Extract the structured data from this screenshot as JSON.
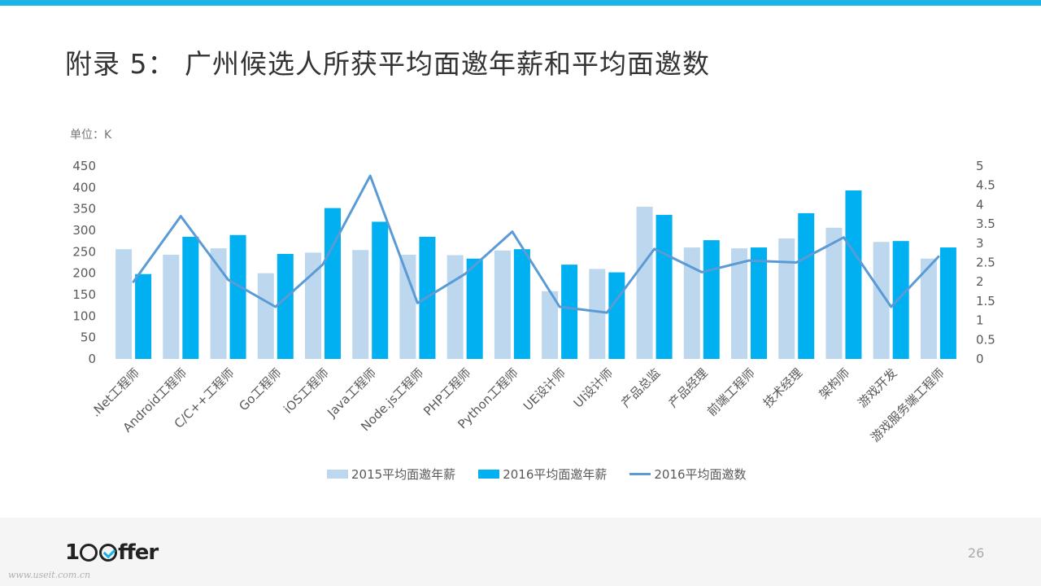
{
  "title": "附录 5： 广州候选人所获平均面邀年薪和平均面邀数",
  "unit_label": "单位：K",
  "page_number": "26",
  "logo": {
    "pre": "1",
    "post": "ffer",
    "icon": "check-circle-icon"
  },
  "watermark": "www.useit.com.cn",
  "colors": {
    "accent": "#1ab3e6",
    "s2015": "#bdd7ee",
    "s2016": "#00b0f0",
    "line": "#5b9bd5"
  },
  "chart_data": {
    "type": "bar",
    "categories": [
      ".Net工程师",
      "Android工程师",
      "C/C++工程师",
      "Go工程师",
      "iOS工程师",
      "Java工程师",
      "Node.js工程师",
      "PHP工程师",
      "Python工程师",
      "UE设计师",
      "UI设计师",
      "产品总监",
      "产品经理",
      "前端工程师",
      "技术经理",
      "架构师",
      "游戏开发",
      "游戏服务端工程师"
    ],
    "series": [
      {
        "name": "2015平均面邀年薪",
        "type": "bar",
        "axis": "left",
        "values": [
          256,
          243,
          258,
          200,
          248,
          254,
          243,
          242,
          253,
          158,
          210,
          355,
          260,
          258,
          281,
          306,
          273,
          234
        ]
      },
      {
        "name": "2016平均面邀年薪",
        "type": "bar",
        "axis": "left",
        "values": [
          198,
          285,
          289,
          245,
          352,
          320,
          285,
          234,
          256,
          220,
          202,
          336,
          277,
          260,
          340,
          393,
          275,
          260
        ]
      },
      {
        "name": "2016平均面邀数",
        "type": "line",
        "axis": "right",
        "values": [
          2.0,
          3.7,
          2.05,
          1.35,
          2.45,
          4.75,
          1.45,
          2.2,
          3.3,
          1.35,
          1.2,
          2.85,
          2.25,
          2.55,
          2.5,
          3.15,
          1.35,
          2.65
        ]
      }
    ],
    "y_left": {
      "ticks": [
        "0",
        "50",
        "100",
        "150",
        "200",
        "250",
        "300",
        "350",
        "400",
        "450"
      ],
      "range": [
        0,
        450
      ]
    },
    "y_right": {
      "ticks": [
        "0",
        "0.5",
        "1",
        "1.5",
        "2",
        "2.5",
        "3",
        "3.5",
        "4",
        "4.5",
        "5"
      ],
      "range": [
        0,
        5
      ]
    },
    "grid": false,
    "legend_position": "bottom"
  }
}
